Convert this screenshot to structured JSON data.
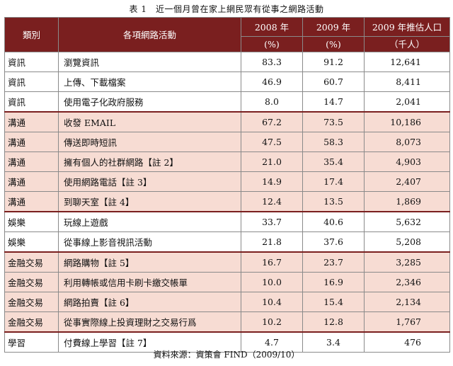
{
  "title": "表 1　近一個月曾在家上網民眾有從事之網路活動",
  "headers": {
    "category": "類別",
    "activity": "各項網路活動",
    "y2008": "2008 年",
    "y2008_unit": "(%)",
    "y2009": "2009 年",
    "y2009_unit": "(%)",
    "est": "2009 年推估人口",
    "est_unit": "（千人）"
  },
  "rows": [
    {
      "category": "資訊",
      "activity": "瀏覽資訊",
      "y2008": "83.3",
      "y2009": "91.2",
      "est": "12,641"
    },
    {
      "category": "資訊",
      "activity": "上傳、下載檔案",
      "y2008": "46.9",
      "y2009": "60.7",
      "est": "8,411"
    },
    {
      "category": "資訊",
      "activity": "使用電子化政府服務",
      "y2008": "8.0",
      "y2009": "14.7",
      "est": "2,041"
    },
    {
      "category": "溝通",
      "activity": "收發 EMAIL",
      "y2008": "67.2",
      "y2009": "73.5",
      "est": "10,186"
    },
    {
      "category": "溝通",
      "activity": "傳送即時短訊",
      "y2008": "47.5",
      "y2009": "58.3",
      "est": "8,073"
    },
    {
      "category": "溝通",
      "activity": "擁有個人的社群網路【註 2】",
      "y2008": "21.0",
      "y2009": "35.4",
      "est": "4,903"
    },
    {
      "category": "溝通",
      "activity": "使用網路電話【註 3】",
      "y2008": "14.9",
      "y2009": "17.4",
      "est": "2,407"
    },
    {
      "category": "溝通",
      "activity": "到聊天室【註 4】",
      "y2008": "12.4",
      "y2009": "13.5",
      "est": "1,869"
    },
    {
      "category": "娛樂",
      "activity": "玩線上遊戲",
      "y2008": "33.7",
      "y2009": "40.6",
      "est": "5,632"
    },
    {
      "category": "娛樂",
      "activity": "從事線上影音視訊活動",
      "y2008": "21.8",
      "y2009": "37.6",
      "est": "5,208"
    },
    {
      "category": "金融交易",
      "activity": "網路購物【註 5】",
      "y2008": "16.7",
      "y2009": "23.7",
      "est": "3,285"
    },
    {
      "category": "金融交易",
      "activity": "利用轉帳或信用卡刷卡繳交帳單",
      "y2008": "10.0",
      "y2009": "16.9",
      "est": "2,346"
    },
    {
      "category": "金融交易",
      "activity": "網路拍賣【註 6】",
      "y2008": "10.4",
      "y2009": "15.4",
      "est": "2,134"
    },
    {
      "category": "金融交易",
      "activity": "從事實際線上投資理財之交易行爲",
      "y2008": "10.2",
      "y2009": "12.8",
      "est": "1,767"
    },
    {
      "category": "學習",
      "activity": "付費線上學習【註 7】",
      "y2008": "4.7",
      "y2009": "3.4",
      "est": "476"
    }
  ],
  "source": "資料來源：資策會 FIND（2009/10）"
}
